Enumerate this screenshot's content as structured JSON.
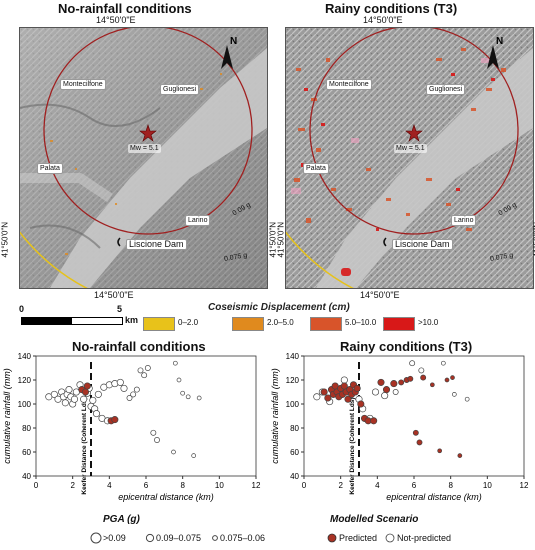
{
  "panels": {
    "left_title": "No-rainfall conditions",
    "right_title": "Rainy conditions (T3)"
  },
  "map": {
    "coord_top": "14°50'0\"E",
    "coord_bottom": "14°50'0\"E",
    "coord_side": "41°50'0\"N",
    "north": "N",
    "places": [
      "Montecilfone",
      "Guglionesi",
      "Palata",
      "Larino"
    ],
    "dam": "Liscione Dam",
    "magnitude": "Mw = 5.1",
    "contour_labels": [
      "0.09 g",
      "0.075 g"
    ]
  },
  "scalebar": {
    "zero": "0",
    "five": "5",
    "unit": "km"
  },
  "legend": {
    "title": "Coseismic Displacement (cm)",
    "items": [
      {
        "label": "0–2.0",
        "color": "#e8c21a"
      },
      {
        "label": "2.0–5.0",
        "color": "#e08a1e"
      },
      {
        "label": "5.0–10.0",
        "color": "#d8542a"
      },
      {
        "label": ">10.0",
        "color": "#d81818"
      }
    ]
  },
  "scatter_common": {
    "xlabel": "epicentral distance (km)",
    "ylabel": "cumulative rainfall (mm)",
    "keefer": "Keefer Distance (Coherent Lds)"
  },
  "bottom_legend": {
    "pga_title": "PGA (g)",
    "pga_items": [
      ">0.09",
      "0.09–0.075",
      "0.075–0.06"
    ],
    "model_title": "Modelled Scenario",
    "model_items": [
      "Predicted",
      "Not-predicted"
    ],
    "predicted_color": "#a83224"
  },
  "chart_data": [
    {
      "type": "scatter",
      "title": "No-rainfall conditions",
      "xlabel": "epicentral distance (km)",
      "ylabel": "cumulative rainfall (mm)",
      "xlim": [
        0,
        12
      ],
      "ylim": [
        40,
        140
      ],
      "xticks": [
        0,
        2,
        4,
        6,
        8,
        10,
        12
      ],
      "yticks": [
        40,
        60,
        80,
        100,
        120,
        140
      ],
      "keefer_distance": 3,
      "series": [
        {
          "name": "Not-predicted",
          "points": [
            [
              0.7,
              106
            ],
            [
              1.0,
              108
            ],
            [
              1.2,
              104
            ],
            [
              1.4,
              110
            ],
            [
              1.5,
              106
            ],
            [
              1.6,
              101
            ],
            [
              1.7,
              108
            ],
            [
              1.8,
              112
            ],
            [
              1.9,
              106
            ],
            [
              2.0,
              100
            ],
            [
              2.1,
              104
            ],
            [
              2.2,
              110
            ],
            [
              2.4,
              116
            ],
            [
              2.6,
              104
            ],
            [
              2.8,
              109
            ],
            [
              2.9,
              113
            ],
            [
              3.0,
              98
            ],
            [
              3.1,
              103
            ],
            [
              3.2,
              96
            ],
            [
              3.3,
              92
            ],
            [
              3.4,
              108
            ],
            [
              3.6,
              88
            ],
            [
              3.7,
              114
            ],
            [
              3.9,
              86
            ],
            [
              4.0,
              116
            ],
            [
              4.3,
              117
            ],
            [
              4.6,
              118
            ],
            [
              4.8,
              113
            ],
            [
              5.1,
              105
            ],
            [
              5.3,
              108
            ],
            [
              5.5,
              112
            ],
            [
              5.7,
              128
            ],
            [
              5.9,
              124
            ],
            [
              6.1,
              130
            ],
            [
              6.4,
              76
            ],
            [
              6.6,
              70
            ],
            [
              7.5,
              60
            ],
            [
              7.6,
              134
            ],
            [
              7.8,
              120
            ],
            [
              8.0,
              109
            ],
            [
              8.3,
              106
            ],
            [
              8.6,
              57
            ],
            [
              8.9,
              105
            ]
          ]
        },
        {
          "name": "Predicted",
          "points": [
            [
              2.5,
              112
            ],
            [
              2.7,
              110
            ],
            [
              2.8,
              115
            ],
            [
              4.1,
              86
            ],
            [
              4.3,
              87
            ]
          ]
        }
      ]
    },
    {
      "type": "scatter",
      "title": "Rainy conditions (T3)",
      "xlabel": "epicentral distance (km)",
      "ylabel": "cumulative rainfall (mm)",
      "xlim": [
        0,
        12
      ],
      "ylim": [
        40,
        140
      ],
      "xticks": [
        0,
        2,
        4,
        6,
        8,
        10,
        12
      ],
      "yticks": [
        40,
        60,
        80,
        100,
        120,
        140
      ],
      "keefer_distance": 3,
      "series": [
        {
          "name": "Predicted",
          "points": [
            [
              1.1,
              110
            ],
            [
              1.3,
              105
            ],
            [
              1.5,
              112
            ],
            [
              1.6,
              108
            ],
            [
              1.7,
              115
            ],
            [
              1.8,
              110
            ],
            [
              1.9,
              106
            ],
            [
              2.0,
              113
            ],
            [
              2.1,
              108
            ],
            [
              2.2,
              115
            ],
            [
              2.3,
              110
            ],
            [
              2.4,
              104
            ],
            [
              2.5,
              112
            ],
            [
              2.6,
              108
            ],
            [
              2.7,
              116
            ],
            [
              2.8,
              110
            ],
            [
              2.9,
              113
            ],
            [
              3.1,
              100
            ],
            [
              3.3,
              88
            ],
            [
              3.5,
              86
            ],
            [
              3.8,
              86
            ],
            [
              4.2,
              118
            ],
            [
              4.5,
              112
            ],
            [
              4.9,
              117
            ],
            [
              5.3,
              118
            ],
            [
              5.6,
              120
            ],
            [
              5.8,
              121
            ],
            [
              6.1,
              76
            ],
            [
              6.3,
              68
            ],
            [
              6.5,
              122
            ],
            [
              7.0,
              116
            ],
            [
              7.4,
              61
            ],
            [
              7.8,
              120
            ],
            [
              8.1,
              122
            ],
            [
              8.5,
              57
            ]
          ]
        },
        {
          "name": "Not-predicted",
          "points": [
            [
              0.7,
              106
            ],
            [
              1.0,
              110
            ],
            [
              1.4,
              102
            ],
            [
              2.2,
              120
            ],
            [
              3.0,
              104
            ],
            [
              3.2,
              96
            ],
            [
              3.6,
              88
            ],
            [
              3.9,
              110
            ],
            [
              4.4,
              107
            ],
            [
              5.0,
              110
            ],
            [
              5.9,
              134
            ],
            [
              6.4,
              128
            ],
            [
              7.6,
              134
            ],
            [
              8.2,
              108
            ],
            [
              8.9,
              104
            ]
          ]
        }
      ]
    }
  ]
}
